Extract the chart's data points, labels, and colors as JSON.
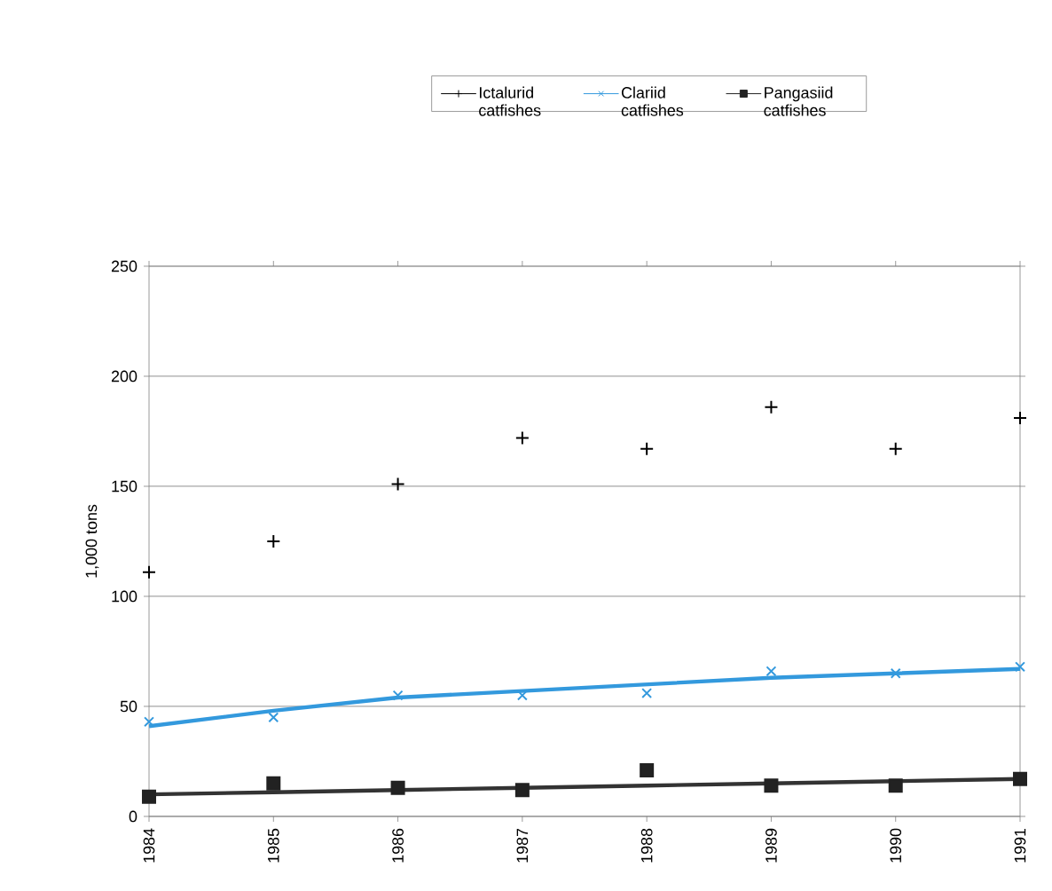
{
  "chart_data": {
    "type": "scatter",
    "ylabel": "1,000 tons",
    "categories": [
      "1984",
      "1985",
      "1986",
      "1987",
      "1988",
      "1989",
      "1990",
      "1991"
    ],
    "series": [
      {
        "name": "Ictalurid catfishes",
        "color": "#000000",
        "values": [
          111,
          125,
          151,
          172,
          167,
          186,
          167,
          181
        ]
      },
      {
        "name": "Clariid catfishes",
        "marker": "cross",
        "color": "#3399dd",
        "values": [
          43,
          45,
          55,
          55,
          56,
          66,
          65,
          68
        ]
      },
      {
        "name": "Pangasiid catfishes",
        "marker": "square",
        "color": "#222222",
        "values": [
          9,
          15,
          13,
          12,
          21,
          14,
          14,
          17
        ]
      },
      {
        "type": "line",
        "color": "#3399dd",
        "values": [
          41,
          48,
          54,
          57,
          60,
          63,
          65,
          67
        ]
      },
      {
        "type": "line",
        "color": "#333333",
        "values": [
          10,
          11,
          12,
          13,
          14,
          15,
          16,
          17
        ]
      }
    ],
    "ylim": [
      0,
      250
    ],
    "yticks": [
      0,
      50,
      100,
      150,
      200,
      250
    ],
    "grid": "y",
    "legend": "top"
  }
}
